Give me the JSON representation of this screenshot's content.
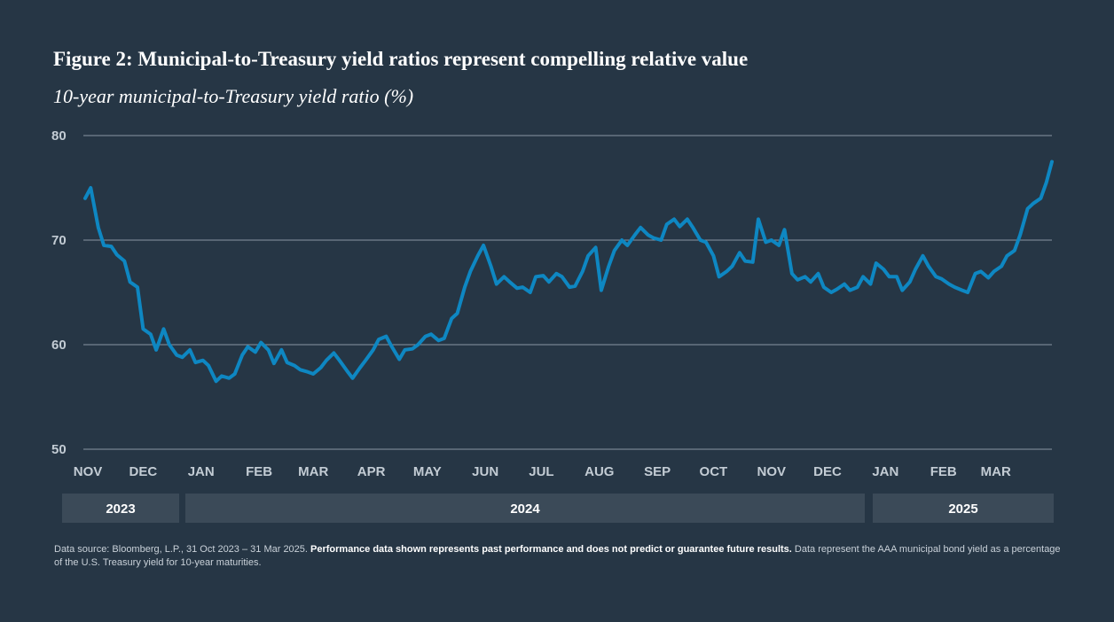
{
  "header": {
    "title": "Figure 2: Municipal-to-Treasury yield ratios represent compelling relative value",
    "subtitle": "10-year municipal-to-Treasury yield ratio (%)"
  },
  "colors": {
    "background": "#263645",
    "line": "#0e87c2",
    "grid": "#8a96a2",
    "tick_text": "#c3ccd4",
    "year_band": "#3b4a58"
  },
  "chart_data": {
    "type": "line",
    "title": "10-year municipal-to-Treasury yield ratio (%)",
    "xlabel": "",
    "ylabel": "",
    "ylim": [
      50,
      80
    ],
    "yticks": [
      50,
      60,
      70,
      80
    ],
    "grid": true,
    "x_range": [
      "2023-10-31",
      "2025-03-31"
    ],
    "month_ticks": [
      "NOV",
      "DEC",
      "JAN",
      "FEB",
      "MAR",
      "APR",
      "MAY",
      "JUN",
      "JUL",
      "AUG",
      "SEP",
      "OCT",
      "NOV",
      "DEC",
      "JAN",
      "FEB",
      "MAR"
    ],
    "years": [
      "2023",
      "2024",
      "2025"
    ],
    "series": [
      {
        "name": "",
        "x": [
          "2023-10-31",
          "2023-11-03",
          "2023-11-07",
          "2023-11-10",
          "2023-11-14",
          "2023-11-17",
          "2023-11-21",
          "2023-11-24",
          "2023-11-28",
          "2023-12-01",
          "2023-12-05",
          "2023-12-08",
          "2023-12-12",
          "2023-12-15",
          "2023-12-19",
          "2023-12-22",
          "2023-12-26",
          "2023-12-29",
          "2024-01-02",
          "2024-01-05",
          "2024-01-09",
          "2024-01-12",
          "2024-01-16",
          "2024-01-19",
          "2024-01-23",
          "2024-01-26",
          "2024-01-30",
          "2024-02-02",
          "2024-02-06",
          "2024-02-09",
          "2024-02-13",
          "2024-02-16",
          "2024-02-20",
          "2024-02-23",
          "2024-02-27",
          "2024-03-01",
          "2024-03-05",
          "2024-03-08",
          "2024-03-12",
          "2024-03-15",
          "2024-03-19",
          "2024-03-22",
          "2024-03-26",
          "2024-03-29",
          "2024-04-02",
          "2024-04-05",
          "2024-04-09",
          "2024-04-12",
          "2024-04-16",
          "2024-04-19",
          "2024-04-23",
          "2024-04-26",
          "2024-04-30",
          "2024-05-03",
          "2024-05-07",
          "2024-05-10",
          "2024-05-14",
          "2024-05-17",
          "2024-05-21",
          "2024-05-24",
          "2024-05-28",
          "2024-05-31",
          "2024-06-04",
          "2024-06-07",
          "2024-06-11",
          "2024-06-14",
          "2024-06-18",
          "2024-06-21",
          "2024-06-25",
          "2024-06-28",
          "2024-07-02",
          "2024-07-05",
          "2024-07-09",
          "2024-07-12",
          "2024-07-16",
          "2024-07-19",
          "2024-07-23",
          "2024-07-26",
          "2024-07-30",
          "2024-08-02",
          "2024-08-06",
          "2024-08-09",
          "2024-08-13",
          "2024-08-16",
          "2024-08-20",
          "2024-08-23",
          "2024-08-27",
          "2024-08-30",
          "2024-09-03",
          "2024-09-06",
          "2024-09-10",
          "2024-09-13",
          "2024-09-17",
          "2024-09-20",
          "2024-09-24",
          "2024-09-27",
          "2024-10-01",
          "2024-10-04",
          "2024-10-08",
          "2024-10-11",
          "2024-10-15",
          "2024-10-18",
          "2024-10-22",
          "2024-10-25",
          "2024-10-29",
          "2024-11-01",
          "2024-11-05",
          "2024-11-08",
          "2024-11-12",
          "2024-11-15",
          "2024-11-19",
          "2024-11-22",
          "2024-11-26",
          "2024-11-29",
          "2024-12-03",
          "2024-12-06",
          "2024-12-10",
          "2024-12-13",
          "2024-12-17",
          "2024-12-20",
          "2024-12-24",
          "2024-12-27",
          "2024-12-31",
          "2025-01-03",
          "2025-01-07",
          "2025-01-10",
          "2025-01-14",
          "2025-01-17",
          "2025-01-21",
          "2025-01-24",
          "2025-01-28",
          "2025-01-31",
          "2025-02-04",
          "2025-02-07",
          "2025-02-11",
          "2025-02-14",
          "2025-02-18",
          "2025-02-21",
          "2025-02-25",
          "2025-02-28",
          "2025-03-04",
          "2025-03-07",
          "2025-03-11",
          "2025-03-14",
          "2025-03-18",
          "2025-03-21",
          "2025-03-25",
          "2025-03-28",
          "2025-03-31"
        ],
        "values": [
          74.0,
          75.0,
          71.2,
          69.5,
          69.4,
          68.6,
          68.0,
          66.0,
          65.5,
          61.5,
          61.0,
          59.5,
          61.5,
          60.0,
          59.0,
          58.8,
          59.5,
          58.3,
          58.5,
          58.0,
          56.5,
          57.0,
          56.8,
          57.2,
          59.0,
          59.8,
          59.3,
          60.2,
          59.5,
          58.2,
          59.5,
          58.3,
          58.0,
          57.6,
          57.4,
          57.2,
          57.8,
          58.5,
          59.2,
          58.5,
          57.5,
          56.8,
          57.8,
          58.5,
          59.5,
          60.5,
          60.8,
          59.8,
          58.6,
          59.5,
          59.6,
          60.0,
          60.8,
          61.0,
          60.4,
          60.6,
          62.5,
          63.0,
          65.5,
          67.0,
          68.5,
          69.5,
          67.5,
          65.8,
          66.5,
          66.0,
          65.4,
          65.5,
          65.0,
          66.5,
          66.6,
          66.0,
          66.8,
          66.5,
          65.5,
          65.6,
          67.0,
          68.5,
          69.3,
          65.2,
          67.5,
          69.0,
          70.0,
          69.5,
          70.5,
          71.2,
          70.5,
          70.2,
          70.0,
          71.5,
          72.0,
          71.3,
          72.0,
          71.2,
          70.0,
          69.8,
          68.5,
          66.5,
          67.0,
          67.5,
          68.8,
          68.0,
          67.9,
          72.0,
          69.8,
          70.0,
          69.5,
          71.0,
          66.8,
          66.2,
          66.5,
          66.0,
          66.8,
          65.5,
          65.0,
          65.3,
          65.8,
          65.2,
          65.5,
          66.5,
          65.8,
          67.8,
          67.2,
          66.5,
          66.5,
          65.2,
          66.0,
          67.2,
          68.5,
          67.5,
          66.5,
          66.3,
          65.8,
          65.5,
          65.2,
          65.0,
          66.8,
          67.0,
          66.4,
          67.0,
          67.5,
          68.5,
          69.0,
          70.5,
          73.0,
          73.5,
          74.0,
          75.5,
          77.5
        ]
      }
    ]
  },
  "footnote": {
    "source": "Data source: Bloomberg, L.P., 31 Oct 2023 – 31 Mar 2025.",
    "disclaimer": "Performance data shown represents past performance and does not predict or guarantee future results.",
    "note": "Data represent the AAA municipal bond yield as a percentage of the U.S. Treasury yield for 10-year maturities."
  }
}
